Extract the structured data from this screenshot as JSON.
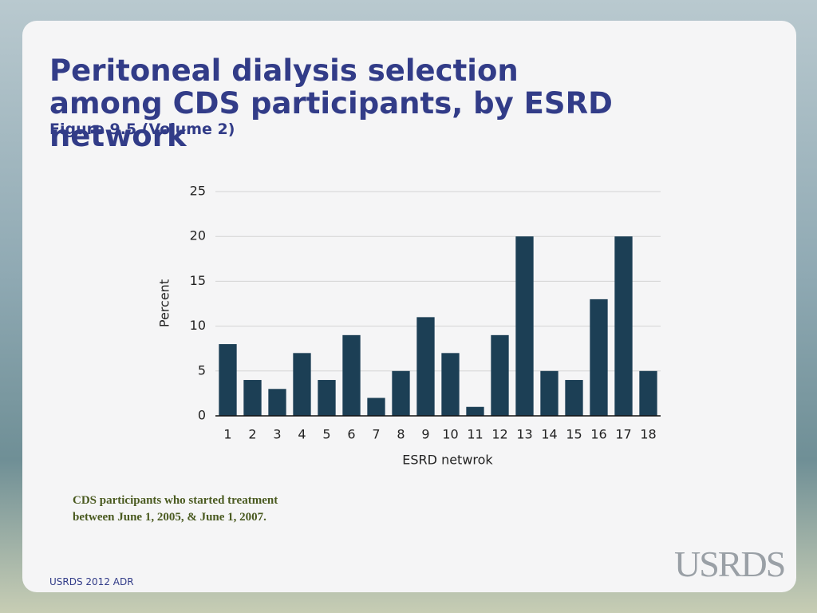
{
  "chart_data": {
    "type": "bar",
    "title": "Peritoneal dialysis selection among CDS participants, by ESRD network",
    "subtitle": "Figure 9.5 (Volume 2)",
    "xlabel": "ESRD netwrok",
    "ylabel": "Percent",
    "categories": [
      "1",
      "2",
      "3",
      "4",
      "5",
      "6",
      "7",
      "8",
      "9",
      "10",
      "11",
      "12",
      "13",
      "14",
      "15",
      "16",
      "17",
      "18"
    ],
    "values": [
      8,
      4,
      3,
      7,
      4,
      9,
      2,
      5,
      11,
      7,
      1,
      9,
      20,
      5,
      4,
      13,
      20,
      5
    ],
    "color": "#1c3f55",
    "ylim": [
      0,
      25
    ],
    "yticks": [
      0,
      5,
      10,
      15,
      20,
      25
    ],
    "grid": true
  },
  "note": "CDS participants who started treatment between June 1, 2005, & June 1, 2007.",
  "footer": "USRDS 2012 ADR",
  "logo": "USRDS"
}
